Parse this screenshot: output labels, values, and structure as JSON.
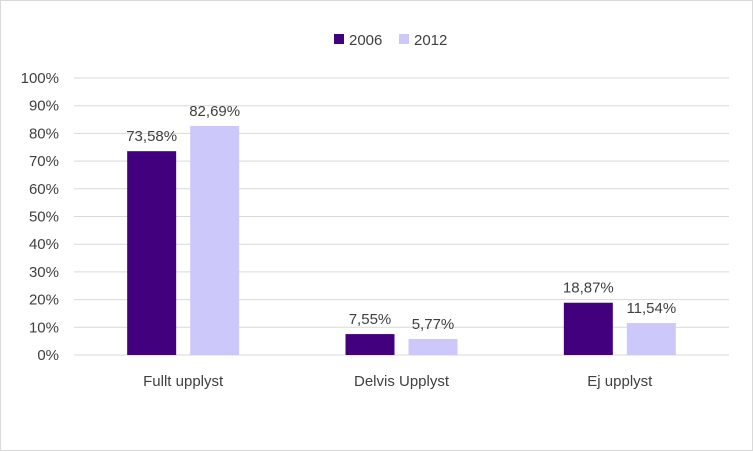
{
  "chart_data": {
    "type": "bar",
    "categories": [
      "Fullt upplyst",
      "Delvis Upplyst",
      "Ej upplyst"
    ],
    "series": [
      {
        "name": "2006",
        "values": [
          73.58,
          7.55,
          18.87
        ],
        "labels": [
          "73,58%",
          "7,55%",
          "18,87%"
        ],
        "color": "#43007e"
      },
      {
        "name": "2012",
        "values": [
          82.69,
          5.77,
          11.54
        ],
        "labels": [
          "82,69%",
          "5,77%",
          "11,54%"
        ],
        "color": "#cdc8fa"
      }
    ],
    "ylim": [
      0,
      100
    ],
    "yticks": [
      "0%",
      "10%",
      "20%",
      "30%",
      "40%",
      "50%",
      "60%",
      "70%",
      "80%",
      "90%",
      "100%"
    ],
    "grid": true,
    "legend": "top-center",
    "title": "",
    "xlabel": "",
    "ylabel": ""
  }
}
